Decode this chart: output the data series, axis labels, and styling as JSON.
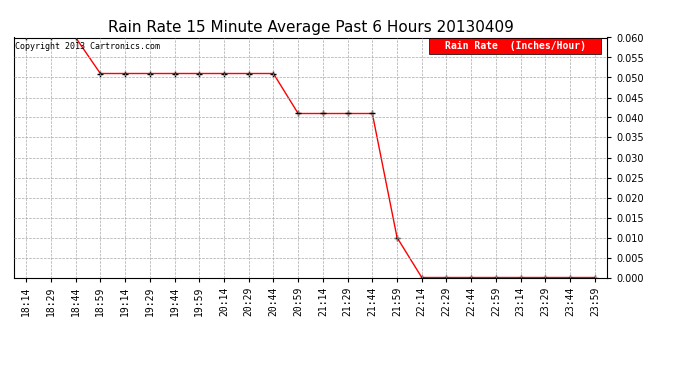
{
  "title": "Rain Rate 15 Minute Average Past 6 Hours 20130409",
  "copyright_text": "Copyright 2013 Cartronics.com",
  "legend_label": "Rain Rate  (Inches/Hour)",
  "x_labels": [
    "18:14",
    "18:29",
    "18:44",
    "18:59",
    "19:14",
    "19:29",
    "19:44",
    "19:59",
    "20:14",
    "20:29",
    "20:44",
    "20:59",
    "21:14",
    "21:29",
    "21:44",
    "21:59",
    "22:14",
    "22:29",
    "22:44",
    "22:59",
    "23:14",
    "23:29",
    "23:44",
    "23:59"
  ],
  "y_values": [
    0.06,
    0.06,
    0.06,
    0.051,
    0.051,
    0.051,
    0.051,
    0.051,
    0.051,
    0.051,
    0.051,
    0.041,
    0.041,
    0.041,
    0.041,
    0.01,
    0.0,
    0.0,
    0.0,
    0.0,
    0.0,
    0.0,
    0.0,
    0.0
  ],
  "ylim_min": 0.0,
  "ylim_max": 0.06,
  "yticks": [
    0.0,
    0.005,
    0.01,
    0.015,
    0.02,
    0.025,
    0.03,
    0.035,
    0.04,
    0.045,
    0.05,
    0.055,
    0.06
  ],
  "line_color": "#ff0000",
  "marker": "+",
  "marker_color": "#000000",
  "background_color": "#ffffff",
  "grid_color": "#aaaaaa",
  "title_fontsize": 11,
  "tick_fontsize": 7,
  "copyright_fontsize": 6,
  "legend_bg": "#ff0000",
  "legend_fg": "#ffffff",
  "legend_fontsize": 7
}
